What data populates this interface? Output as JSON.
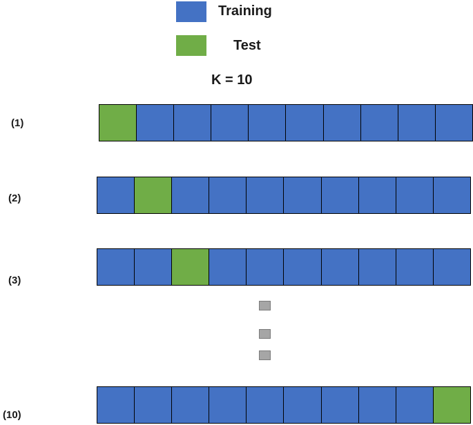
{
  "legend": {
    "training_label": "Training",
    "test_label": "Test",
    "training_color": "#4472C4",
    "test_color": "#70AD47"
  },
  "k_label": "K = 10",
  "folds_per_row": 10,
  "rows": [
    {
      "label": "(1)",
      "test_index": 0
    },
    {
      "label": "(2)",
      "test_index": 1
    },
    {
      "label": "(3)",
      "test_index": 2
    },
    {
      "label": "(10)",
      "test_index": 9
    }
  ],
  "ellipsis": {
    "count": 3,
    "color": "#A6A6A6",
    "icon": "square-dot-icon"
  }
}
